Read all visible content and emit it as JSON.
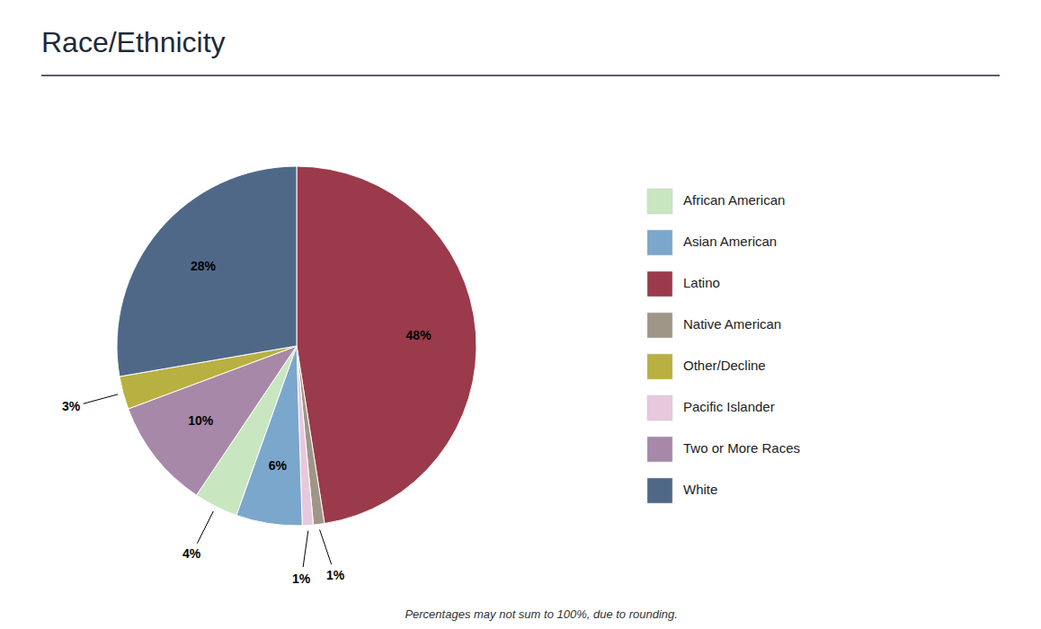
{
  "chart_data": {
    "type": "pie",
    "title": "Race/Ethnicity",
    "categories": [
      "Latino",
      "Native American",
      "Pacific Islander",
      "Asian American",
      "African American",
      "Two or More Races",
      "Other/Decline",
      "White"
    ],
    "values": [
      48,
      1,
      1,
      6,
      4,
      10,
      3,
      28
    ],
    "value_labels": [
      "48%",
      "1%",
      "1%",
      "6%",
      "4%",
      "10%",
      "3%",
      "28%"
    ],
    "colors": [
      "#9B3A4A",
      "#A09688",
      "#E8C8DC",
      "#7BA7CC",
      "#C8E6C0",
      "#A888A8",
      "#B8B040",
      "#506888"
    ],
    "data_labels": true,
    "legend": "right",
    "legend_labels": [
      "African American",
      "Asian American",
      "Latino",
      "Native American",
      "Other/Decline",
      "Pacific Islander",
      "Two or More Races",
      "White"
    ],
    "legend_colors": [
      "#C8E6C0",
      "#7BA7CC",
      "#9B3A4A",
      "#A09688",
      "#B8B040",
      "#E8C8DC",
      "#A888A8",
      "#506888"
    ],
    "footnote": "Percentages may not sum to 100%, due to rounding."
  }
}
